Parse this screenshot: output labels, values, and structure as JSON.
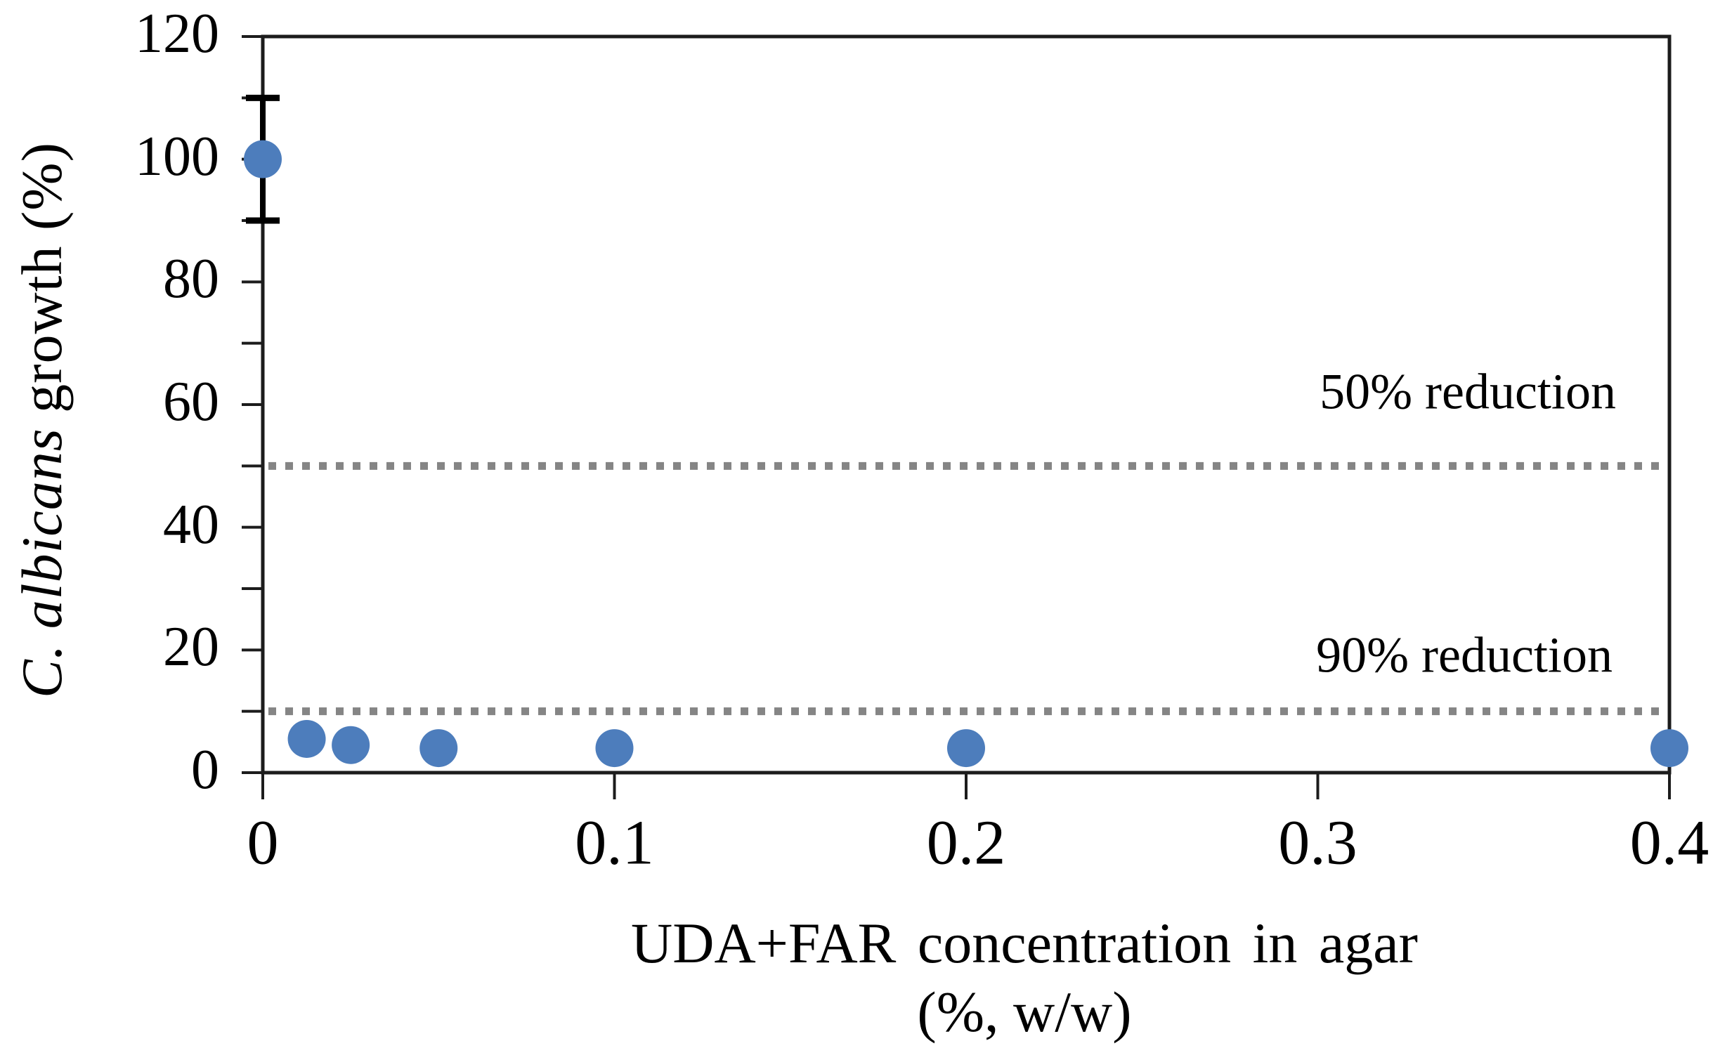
{
  "figure": {
    "y_axis_title_italic": "C. albicans",
    "y_axis_title_rest": " growth (%)",
    "x_axis_title_line1": "UDA+FAR concentration in agar",
    "x_axis_title_line2": "(%, w/w)"
  },
  "chart_data": {
    "type": "scatter",
    "title": "",
    "xlabel": "UDA+FAR concentration in agar (%, w/w)",
    "ylabel": "C. albicans growth (%)",
    "xlim": [
      0,
      0.4
    ],
    "ylim": [
      0,
      120
    ],
    "x_ticks": [
      0,
      0.1,
      0.2,
      0.3,
      0.4
    ],
    "x_tick_labels": [
      "0",
      "0.1",
      "0.2",
      "0.3",
      "0.4"
    ],
    "y_tick_values": [
      0,
      20,
      40,
      60,
      80,
      100,
      120
    ],
    "y_tick_labels": [
      "0",
      "20",
      "40",
      "60",
      "80",
      "100",
      "120"
    ],
    "y_minor_tick_step": 10,
    "grid": false,
    "legend_position": "none",
    "series": [
      {
        "name": "C. albicans growth",
        "marker": "circle",
        "marker_color": "#4d7dbc",
        "points": [
          {
            "x": 0,
            "y": 100,
            "error_y": 10
          },
          {
            "x": 0.0125,
            "y": 5.5
          },
          {
            "x": 0.025,
            "y": 4.5
          },
          {
            "x": 0.05,
            "y": 4
          },
          {
            "x": 0.1,
            "y": 4
          },
          {
            "x": 0.2,
            "y": 4
          },
          {
            "x": 0.4,
            "y": 4
          }
        ]
      }
    ],
    "ref_lines": [
      {
        "y": 50,
        "label": "50% reduction",
        "style": "dotted",
        "color": "#858585"
      },
      {
        "y": 10,
        "label": "90% reduction",
        "style": "dotted",
        "color": "#858585"
      }
    ]
  },
  "colors": {
    "marker": "#4d7dbc",
    "ref_line": "#858585",
    "axis": "#1c1c1c",
    "error_bar": "#000000",
    "background": "#ffffff"
  }
}
